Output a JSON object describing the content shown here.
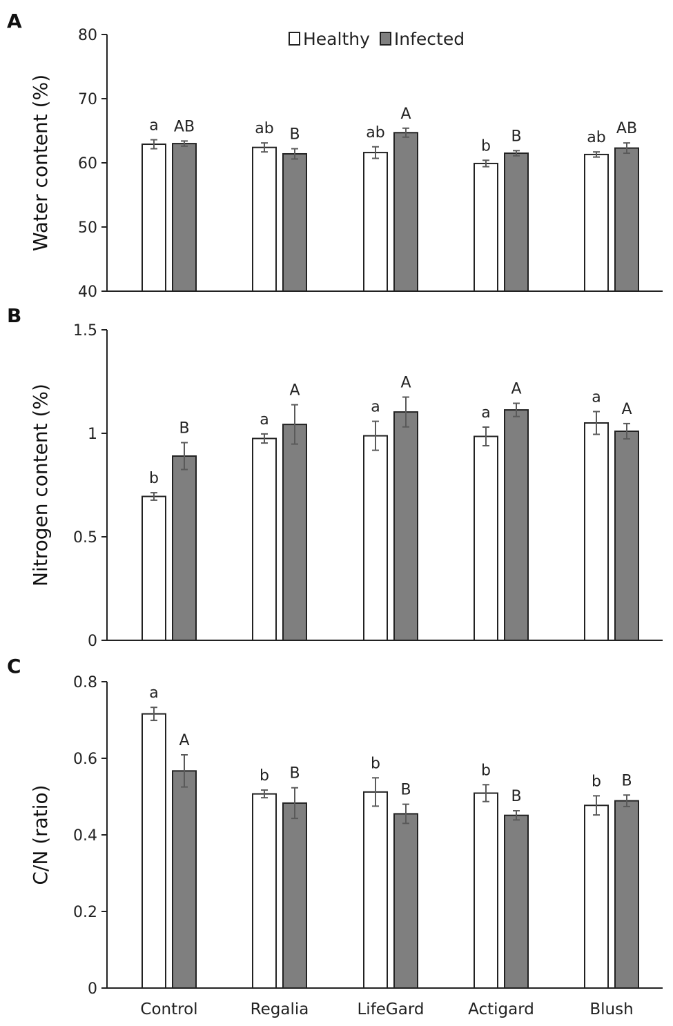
{
  "colors": {
    "healthy": "#ffffff",
    "infected": "#7f7f7f",
    "stroke": "#222222",
    "error_bar": "#5a5a5a"
  },
  "legend": {
    "healthy_label": "Healthy",
    "infected_label": "Infected"
  },
  "chart_data": [
    {
      "panel": "A",
      "type": "bar",
      "ylabel": "Water content (%)",
      "categories": [
        "Control",
        "Regalia",
        "LifeGard",
        "Actigard",
        "Blush"
      ],
      "ylim": [
        40,
        80
      ],
      "yticks": [
        40,
        50,
        60,
        70,
        80
      ],
      "ytick_labels": [
        "40",
        "50",
        "60",
        "70",
        "80"
      ],
      "show_x_labels": false,
      "series": [
        {
          "name": "Healthy",
          "values": [
            62.9,
            62.4,
            61.6,
            59.9,
            61.3
          ],
          "errors": [
            0.7,
            0.7,
            0.9,
            0.5,
            0.4
          ],
          "letters": [
            "a",
            "ab",
            "ab",
            "b",
            "ab"
          ]
        },
        {
          "name": "Infected",
          "values": [
            63.0,
            61.4,
            64.7,
            61.5,
            62.3
          ],
          "errors": [
            0.4,
            0.8,
            0.7,
            0.4,
            0.8
          ],
          "letters": [
            "AB",
            "B",
            "A",
            "B",
            "AB"
          ]
        }
      ]
    },
    {
      "panel": "B",
      "type": "bar",
      "ylabel": "Nitrogen content (%)",
      "categories": [
        "Control",
        "Regalia",
        "LifeGard",
        "Actigard",
        "Blush"
      ],
      "ylim": [
        0,
        1.5
      ],
      "yticks": [
        0,
        0.5,
        1,
        1.5
      ],
      "ytick_labels": [
        "0",
        "0.5",
        "1",
        "1.5"
      ],
      "show_x_labels": false,
      "series": [
        {
          "name": "Healthy",
          "values": [
            0.695,
            0.975,
            0.988,
            0.985,
            1.05
          ],
          "errors": [
            0.018,
            0.022,
            0.07,
            0.045,
            0.055
          ],
          "letters": [
            "b",
            "a",
            "a",
            "a",
            "a"
          ]
        },
        {
          "name": "Infected",
          "values": [
            0.89,
            1.043,
            1.103,
            1.113,
            1.01
          ],
          "errors": [
            0.065,
            0.095,
            0.072,
            0.032,
            0.037
          ],
          "letters": [
            "B",
            "A",
            "A",
            "A",
            "A"
          ]
        }
      ]
    },
    {
      "panel": "C",
      "type": "bar",
      "ylabel": "C/N (ratio)",
      "categories": [
        "Control",
        "Regalia",
        "LifeGard",
        "Actigard",
        "Blush"
      ],
      "ylim": [
        0,
        0.8
      ],
      "yticks": [
        0,
        0.2,
        0.4,
        0.6,
        0.8
      ],
      "ytick_labels": [
        "0",
        "0.2",
        "0.4",
        "0.6",
        "0.8"
      ],
      "show_x_labels": true,
      "series": [
        {
          "name": "Healthy",
          "values": [
            0.716,
            0.507,
            0.512,
            0.509,
            0.477
          ],
          "errors": [
            0.017,
            0.01,
            0.037,
            0.022,
            0.025
          ],
          "letters": [
            "a",
            "b",
            "b",
            "b",
            "b"
          ]
        },
        {
          "name": "Infected",
          "values": [
            0.567,
            0.483,
            0.455,
            0.451,
            0.489
          ],
          "errors": [
            0.042,
            0.04,
            0.025,
            0.012,
            0.015
          ],
          "letters": [
            "A",
            "B",
            "B",
            "B",
            "B"
          ]
        }
      ]
    }
  ]
}
